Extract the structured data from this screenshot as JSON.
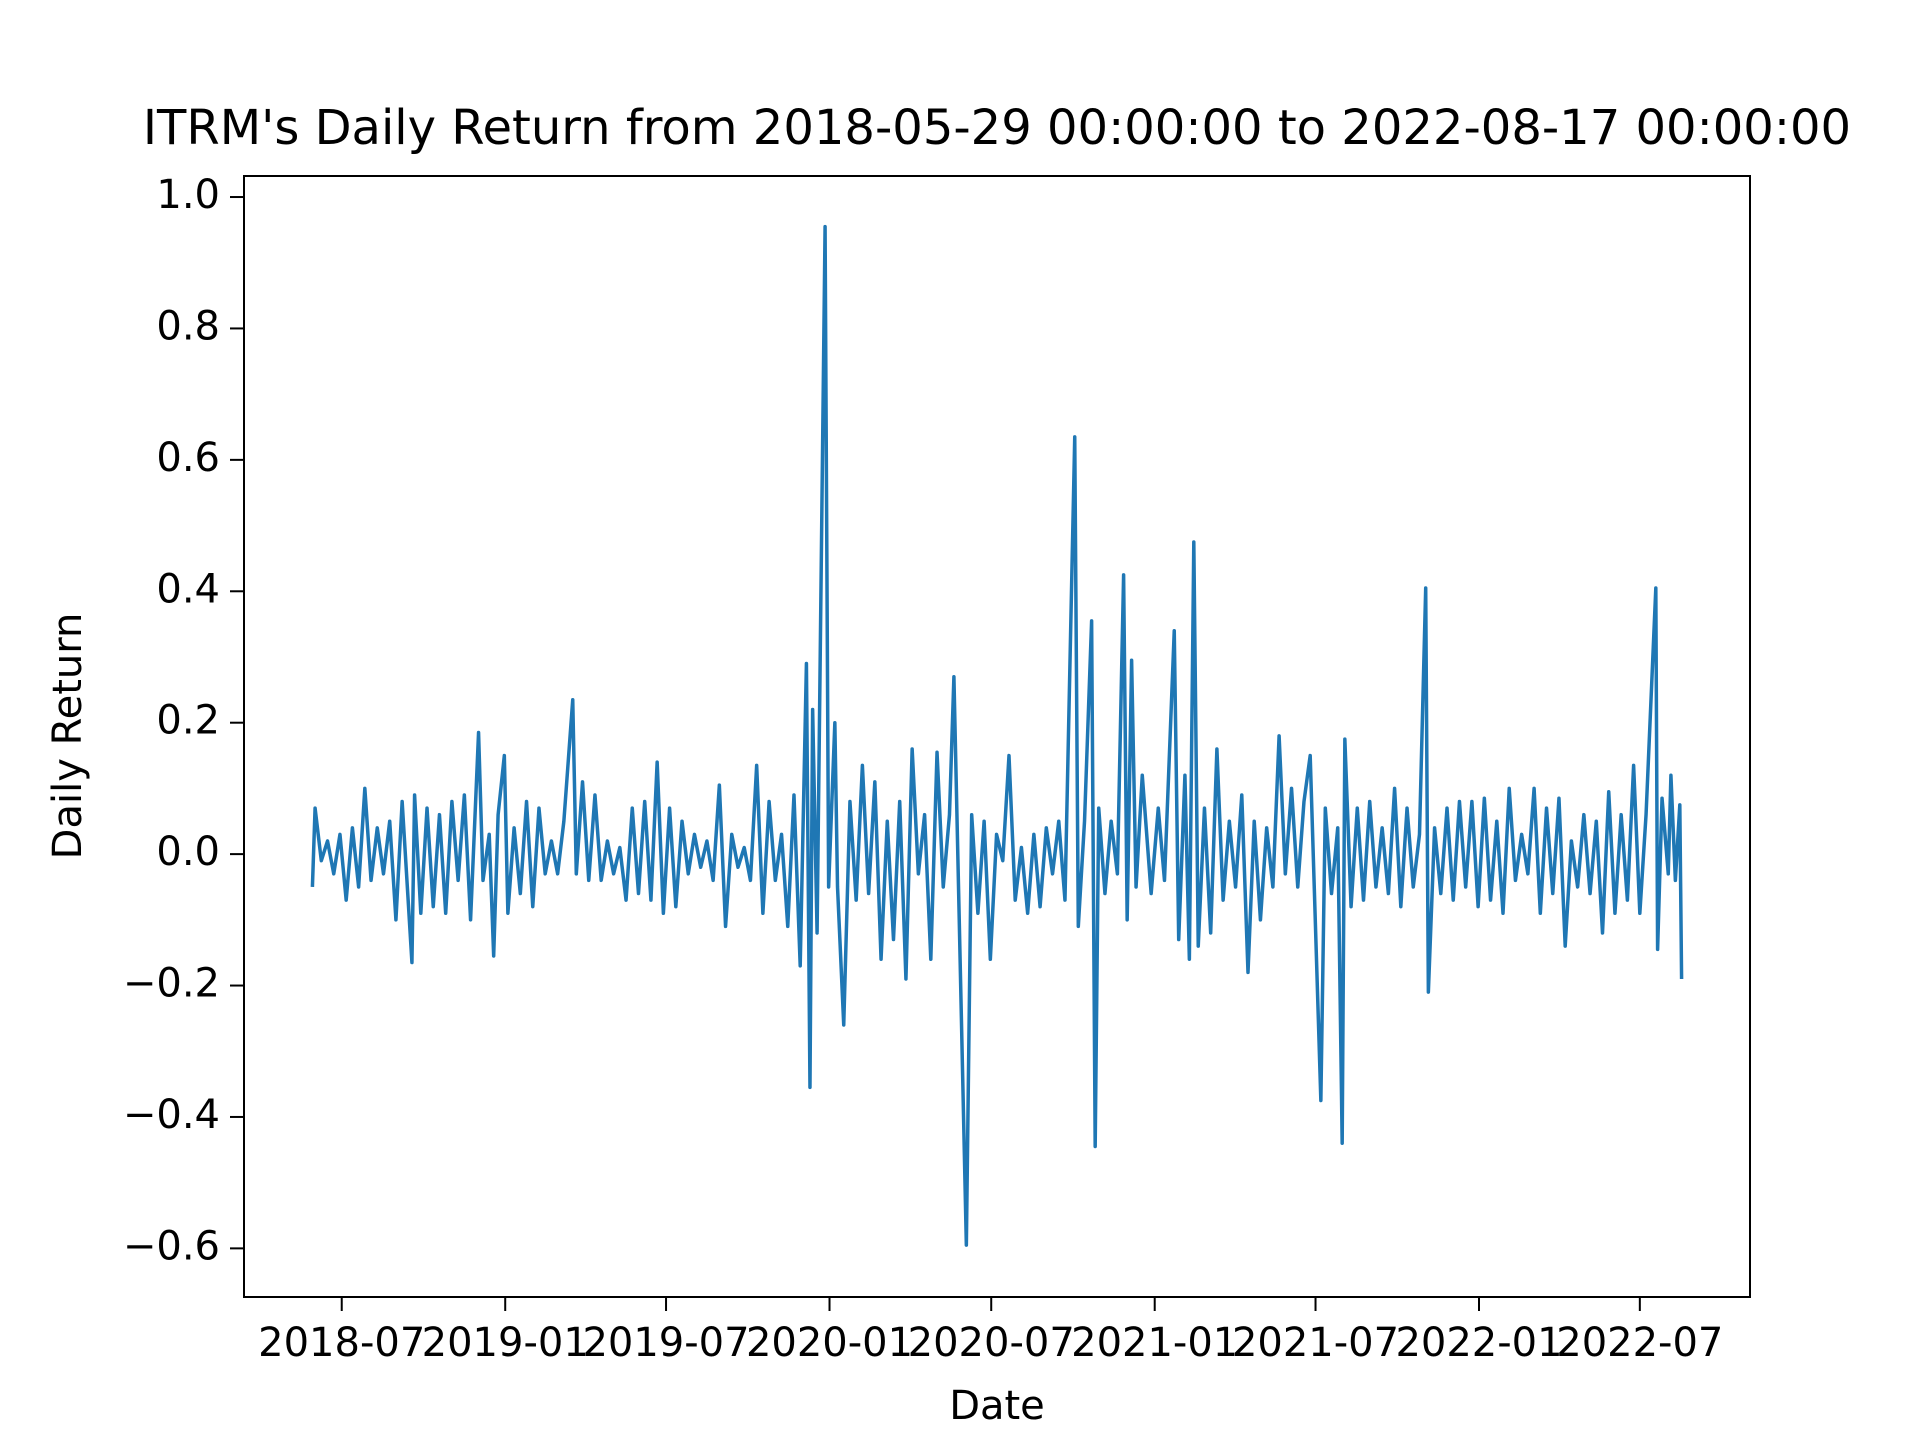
{
  "chart_data": {
    "type": "line",
    "title": "ITRM's Daily Return from 2018-05-29 00:00:00 to 2022-08-17 00:00:00",
    "x_label": "Date",
    "y_label": "Daily Return",
    "color": "#1f77b4",
    "xlim": [
      "2018-03-13",
      "2022-11-02"
    ],
    "ylim": [
      -0.674,
      1.032
    ],
    "xticks": [
      {
        "value": "2018-07-01",
        "label": "2018-07"
      },
      {
        "value": "2019-01-01",
        "label": "2019-01"
      },
      {
        "value": "2019-07-01",
        "label": "2019-07"
      },
      {
        "value": "2020-01-01",
        "label": "2020-01"
      },
      {
        "value": "2020-07-01",
        "label": "2020-07"
      },
      {
        "value": "2021-01-01",
        "label": "2021-01"
      },
      {
        "value": "2021-07-01",
        "label": "2021-07"
      },
      {
        "value": "2022-01-01",
        "label": "2022-01"
      },
      {
        "value": "2022-07-01",
        "label": "2022-07"
      }
    ],
    "yticks": [
      {
        "value": -0.6,
        "label": "−0.6"
      },
      {
        "value": -0.4,
        "label": "−0.4"
      },
      {
        "value": -0.2,
        "label": "−0.2"
      },
      {
        "value": 0,
        "label": "0.0"
      },
      0.2,
      0.4,
      0.6,
      0.8,
      {
        "value": 1,
        "label": "1.0"
      }
    ],
    "x": [
      "2018-05-29",
      "2018-06-01",
      "2018-06-08",
      "2018-06-15",
      "2018-06-22",
      "2018-06-29",
      "2018-07-06",
      "2018-07-13",
      "2018-07-20",
      "2018-07-27",
      "2018-08-03",
      "2018-08-10",
      "2018-08-17",
      "2018-08-24",
      "2018-08-31",
      "2018-09-07",
      "2018-09-18",
      "2018-09-21",
      "2018-09-28",
      "2018-10-05",
      "2018-10-12",
      "2018-10-19",
      "2018-10-26",
      "2018-11-02",
      "2018-11-09",
      "2018-11-16",
      "2018-11-23",
      "2018-12-02",
      "2018-12-07",
      "2018-12-14",
      "2018-12-19",
      "2018-12-24",
      "2018-12-31",
      "2019-01-04",
      "2019-01-11",
      "2019-01-18",
      "2019-01-25",
      "2019-02-01",
      "2019-02-08",
      "2019-02-15",
      "2019-02-22",
      "2019-03-01",
      "2019-03-08",
      "2019-03-18",
      "2019-03-22",
      "2019-03-29",
      "2019-04-05",
      "2019-04-12",
      "2019-04-19",
      "2019-04-26",
      "2019-05-03",
      "2019-05-10",
      "2019-05-17",
      "2019-05-24",
      "2019-05-31",
      "2019-06-07",
      "2019-06-14",
      "2019-06-21",
      "2019-06-28",
      "2019-07-05",
      "2019-07-12",
      "2019-07-19",
      "2019-07-26",
      "2019-08-02",
      "2019-08-09",
      "2019-08-16",
      "2019-08-23",
      "2019-08-30",
      "2019-09-06",
      "2019-09-13",
      "2019-09-20",
      "2019-09-27",
      "2019-10-04",
      "2019-10-11",
      "2019-10-18",
      "2019-10-25",
      "2019-11-01",
      "2019-11-08",
      "2019-11-15",
      "2019-11-22",
      "2019-11-29",
      "2019-12-06",
      "2019-12-10",
      "2019-12-13",
      "2019-12-18",
      "2019-12-27",
      "2019-12-31",
      "2020-01-07",
      "2020-01-10",
      "2020-01-17",
      "2020-01-24",
      "2020-01-31",
      "2020-02-07",
      "2020-02-14",
      "2020-02-21",
      "2020-02-28",
      "2020-03-06",
      "2020-03-13",
      "2020-03-20",
      "2020-03-27",
      "2020-04-03",
      "2020-04-10",
      "2020-04-17",
      "2020-04-24",
      "2020-05-01",
      "2020-05-08",
      "2020-05-15",
      "2020-05-20",
      "2020-05-26",
      "2020-06-03",
      "2020-06-09",
      "2020-06-16",
      "2020-06-23",
      "2020-06-30",
      "2020-07-07",
      "2020-07-14",
      "2020-07-21",
      "2020-07-28",
      "2020-08-04",
      "2020-08-11",
      "2020-08-18",
      "2020-08-25",
      "2020-09-01",
      "2020-09-08",
      "2020-09-15",
      "2020-09-22",
      "2020-10-03",
      "2020-10-07",
      "2020-10-14",
      "2020-10-22",
      "2020-10-26",
      "2020-10-30",
      "2020-11-06",
      "2020-11-13",
      "2020-11-20",
      "2020-11-27",
      "2020-12-01",
      "2020-12-06",
      "2020-12-11",
      "2020-12-18",
      "2020-12-28",
      "2021-01-05",
      "2021-01-12",
      "2021-01-23",
      "2021-01-28",
      "2021-02-04",
      "2021-02-09",
      "2021-02-14",
      "2021-02-19",
      "2021-02-26",
      "2021-03-05",
      "2021-03-12",
      "2021-03-19",
      "2021-03-26",
      "2021-04-02",
      "2021-04-09",
      "2021-04-16",
      "2021-04-23",
      "2021-04-30",
      "2021-05-07",
      "2021-05-14",
      "2021-05-21",
      "2021-05-28",
      "2021-06-04",
      "2021-06-11",
      "2021-06-18",
      "2021-06-25",
      "2021-07-07",
      "2021-07-12",
      "2021-07-19",
      "2021-07-26",
      "2021-07-31",
      "2021-08-03",
      "2021-08-10",
      "2021-08-17",
      "2021-08-24",
      "2021-08-31",
      "2021-09-07",
      "2021-09-14",
      "2021-09-21",
      "2021-09-28",
      "2021-10-05",
      "2021-10-12",
      "2021-10-19",
      "2021-10-26",
      "2021-11-02",
      "2021-11-05",
      "2021-11-12",
      "2021-11-19",
      "2021-11-26",
      "2021-12-03",
      "2021-12-10",
      "2021-12-17",
      "2021-12-24",
      "2021-12-31",
      "2022-01-07",
      "2022-01-14",
      "2022-01-21",
      "2022-01-28",
      "2022-02-04",
      "2022-02-11",
      "2022-02-18",
      "2022-02-25",
      "2022-03-04",
      "2022-03-11",
      "2022-03-18",
      "2022-03-25",
      "2022-04-01",
      "2022-04-08",
      "2022-04-15",
      "2022-04-22",
      "2022-04-29",
      "2022-05-06",
      "2022-05-13",
      "2022-05-20",
      "2022-05-27",
      "2022-06-03",
      "2022-06-10",
      "2022-06-17",
      "2022-06-24",
      "2022-07-01",
      "2022-07-08",
      "2022-07-19",
      "2022-07-21",
      "2022-07-26",
      "2022-08-02",
      "2022-08-05",
      "2022-08-10",
      "2022-08-15",
      "2022-08-17"
    ],
    "values": [
      -0.05,
      0.07,
      -0.01,
      0.02,
      -0.03,
      0.03,
      -0.07,
      0.04,
      -0.05,
      0.1,
      -0.04,
      0.04,
      -0.03,
      0.05,
      -0.1,
      0.08,
      -0.165,
      0.09,
      -0.09,
      0.07,
      -0.08,
      0.06,
      -0.09,
      0.08,
      -0.04,
      0.09,
      -0.1,
      0.185,
      -0.04,
      0.03,
      -0.155,
      0.06,
      0.15,
      -0.09,
      0.04,
      -0.06,
      0.08,
      -0.08,
      0.07,
      -0.03,
      0.02,
      -0.03,
      0.05,
      0.235,
      -0.03,
      0.11,
      -0.04,
      0.09,
      -0.04,
      0.02,
      -0.03,
      0.01,
      -0.07,
      0.07,
      -0.06,
      0.08,
      -0.07,
      0.14,
      -0.09,
      0.07,
      -0.08,
      0.05,
      -0.03,
      0.03,
      -0.02,
      0.02,
      -0.04,
      0.105,
      -0.11,
      0.03,
      -0.02,
      0.01,
      -0.04,
      0.135,
      -0.09,
      0.08,
      -0.04,
      0.03,
      -0.11,
      0.09,
      -0.17,
      0.29,
      -0.355,
      0.22,
      -0.12,
      0.955,
      -0.05,
      0.2,
      -0.05,
      -0.26,
      0.08,
      -0.07,
      0.135,
      -0.06,
      0.11,
      -0.16,
      0.05,
      -0.13,
      0.08,
      -0.19,
      0.16,
      -0.03,
      0.06,
      -0.16,
      0.155,
      -0.05,
      0.06,
      0.27,
      -0.1,
      -0.595,
      0.06,
      -0.09,
      0.05,
      -0.16,
      0.03,
      -0.01,
      0.15,
      -0.07,
      0.01,
      -0.09,
      0.03,
      -0.08,
      0.04,
      -0.03,
      0.05,
      -0.07,
      0.635,
      -0.11,
      0.05,
      0.355,
      -0.445,
      0.07,
      -0.06,
      0.05,
      -0.03,
      0.425,
      -0.1,
      0.295,
      -0.05,
      0.12,
      -0.06,
      0.07,
      -0.04,
      0.34,
      -0.13,
      0.12,
      -0.16,
      0.475,
      -0.14,
      0.07,
      -0.12,
      0.16,
      -0.07,
      0.05,
      -0.05,
      0.09,
      -0.18,
      0.05,
      -0.1,
      0.04,
      -0.05,
      0.18,
      -0.03,
      0.1,
      -0.05,
      0.08,
      0.15,
      -0.375,
      0.07,
      -0.06,
      0.04,
      -0.44,
      0.175,
      -0.08,
      0.07,
      -0.07,
      0.08,
      -0.05,
      0.04,
      -0.06,
      0.1,
      -0.08,
      0.07,
      -0.05,
      0.03,
      0.405,
      -0.21,
      0.04,
      -0.06,
      0.07,
      -0.07,
      0.08,
      -0.05,
      0.08,
      -0.08,
      0.085,
      -0.07,
      0.05,
      -0.09,
      0.1,
      -0.04,
      0.03,
      -0.03,
      0.1,
      -0.09,
      0.07,
      -0.06,
      0.085,
      -0.14,
      0.02,
      -0.05,
      0.06,
      -0.06,
      0.05,
      -0.12,
      0.095,
      -0.09,
      0.06,
      -0.07,
      0.135,
      -0.09,
      0.06,
      0.405,
      -0.145,
      0.085,
      -0.03,
      0.12,
      -0.04,
      0.075,
      -0.19
    ]
  }
}
